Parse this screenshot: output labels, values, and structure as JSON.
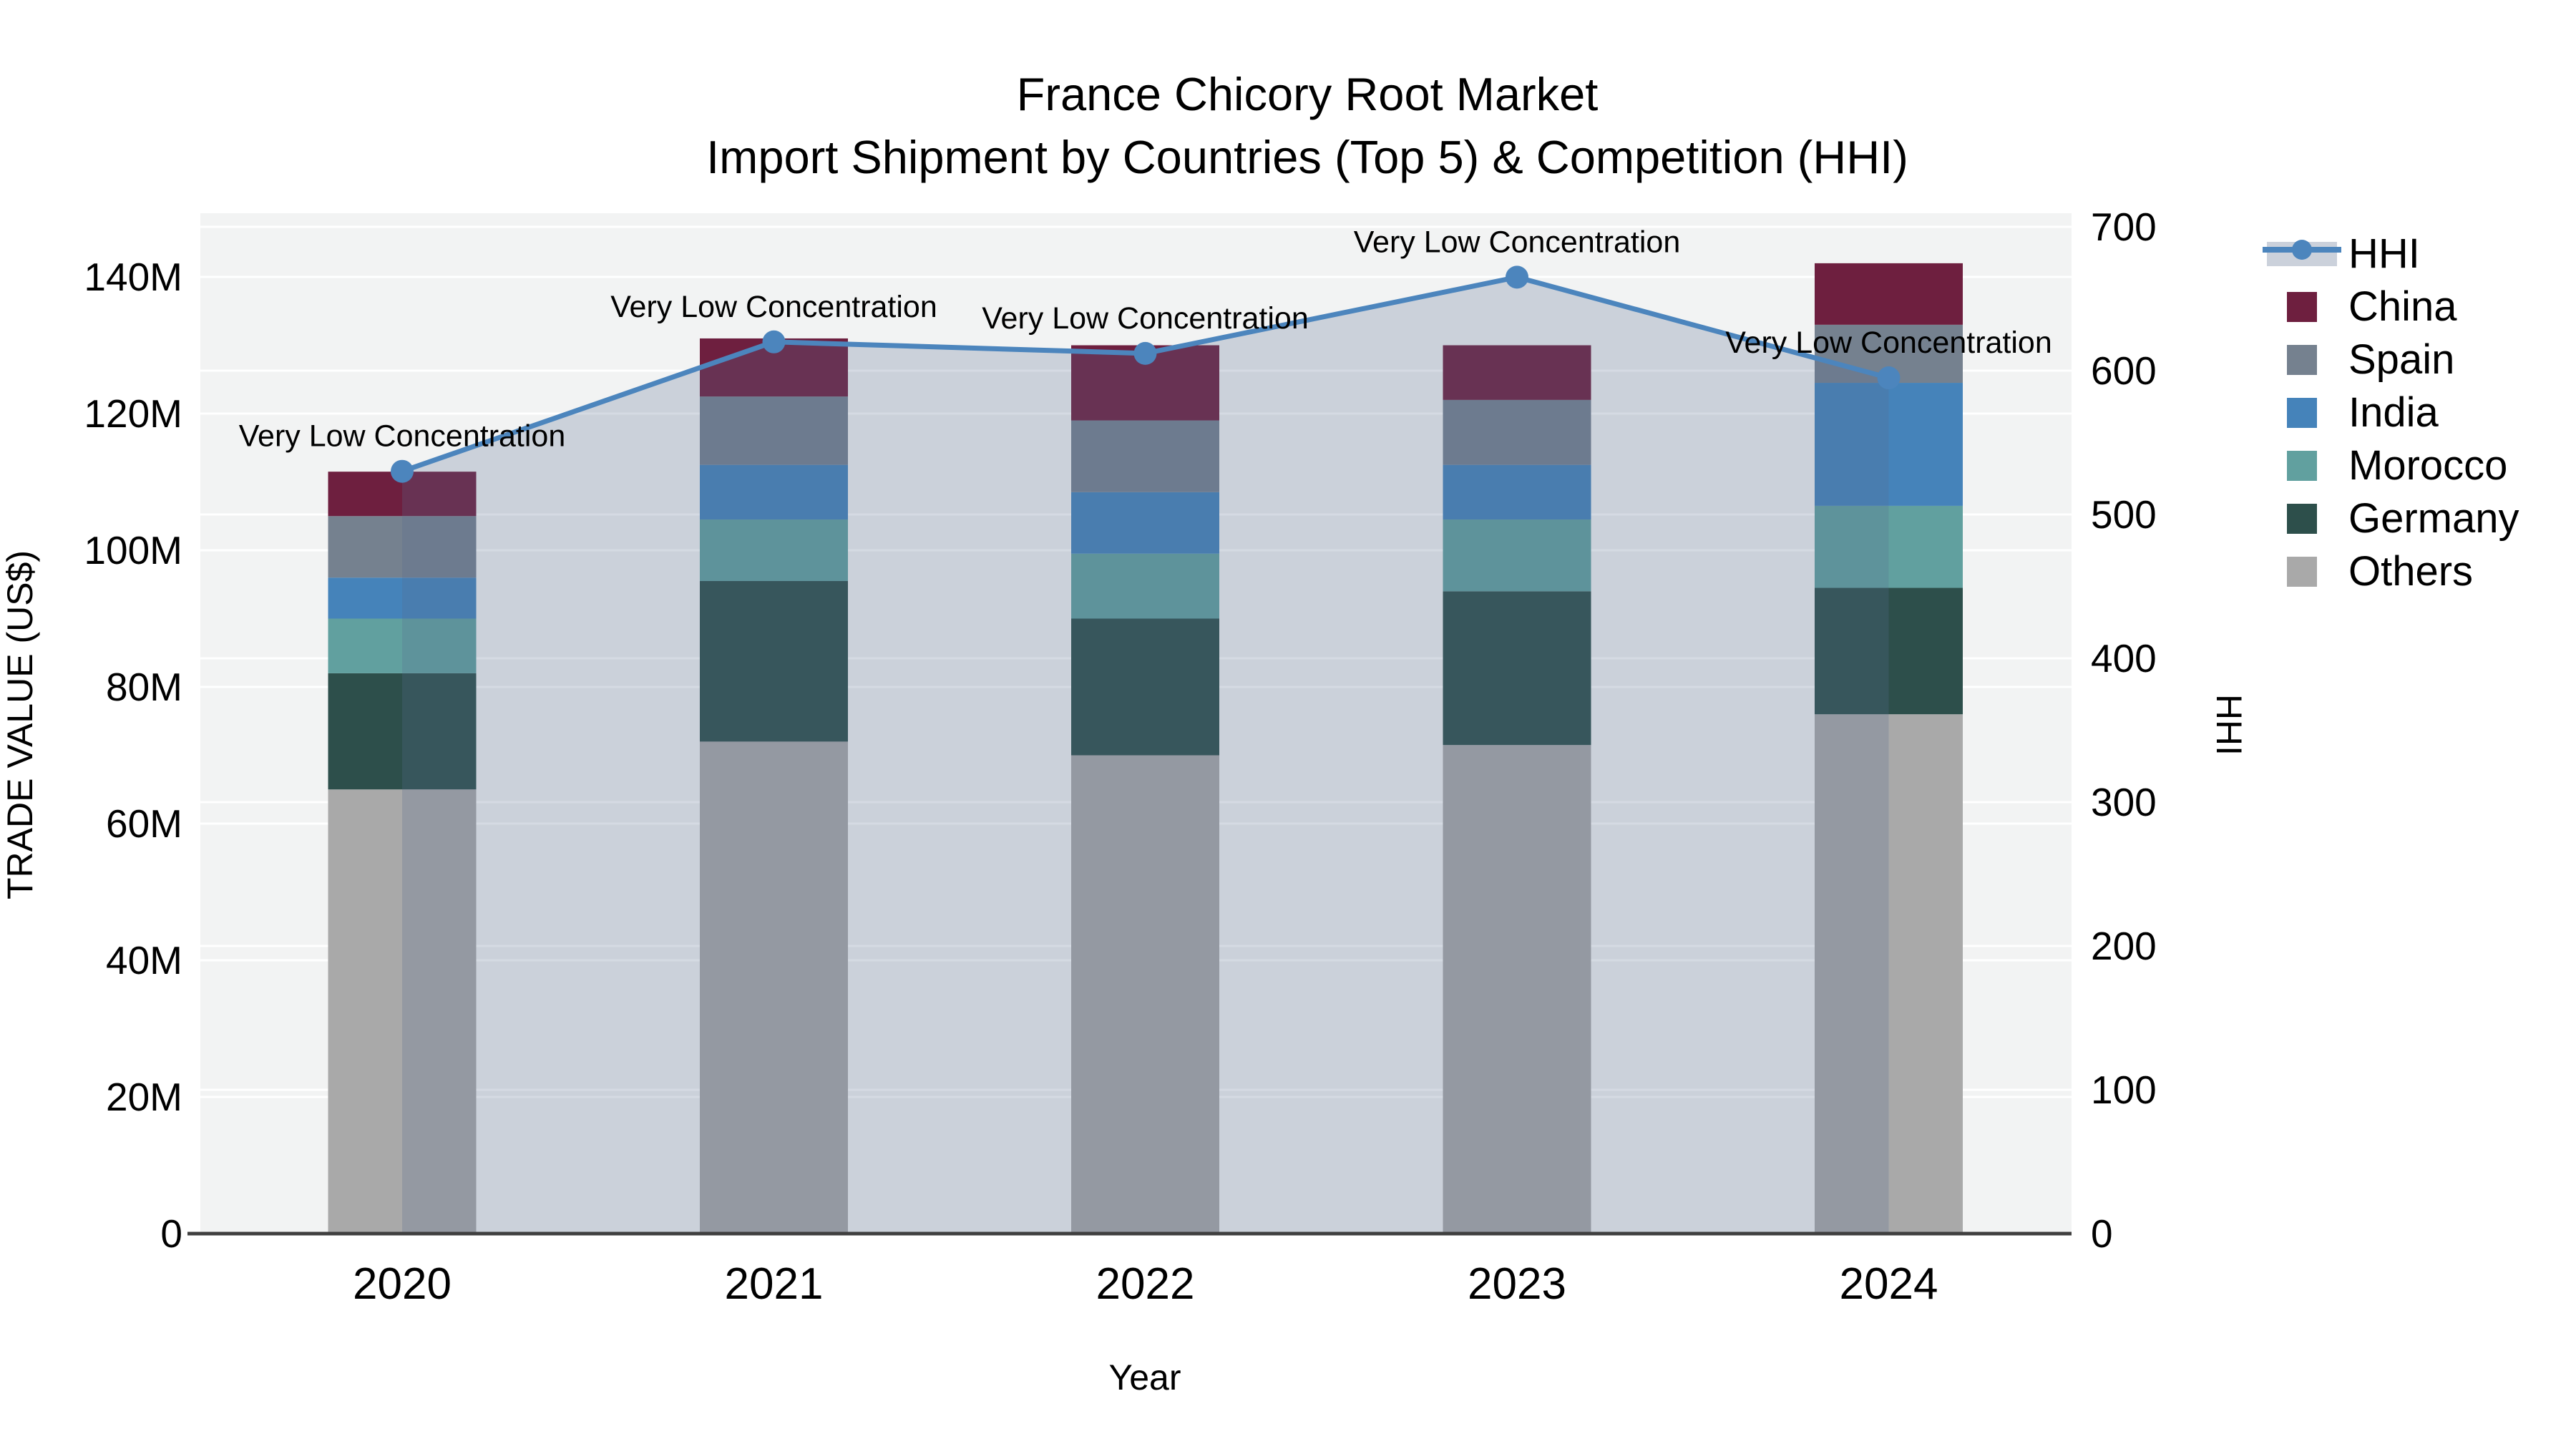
{
  "title": {
    "line1": "France Chicory Root Market",
    "line2": "Import Shipment by Countries (Top 5) & Competition (HHI)"
  },
  "axes": {
    "x_title": "Year",
    "y_left_title": "TRADE VALUE (US$)",
    "y_right_title": "HHI",
    "y_left_ticks": [
      "0",
      "20M",
      "40M",
      "60M",
      "80M",
      "100M",
      "120M",
      "140M"
    ],
    "y_left_tick_values": [
      0,
      20,
      40,
      60,
      80,
      100,
      120,
      140
    ],
    "y_right_ticks": [
      "0",
      "100",
      "200",
      "300",
      "400",
      "500",
      "600",
      "700"
    ],
    "y_right_tick_values": [
      0,
      100,
      200,
      300,
      400,
      500,
      600,
      700
    ]
  },
  "legend": {
    "items": [
      {
        "label": "HHI",
        "type": "line",
        "color": "#4c85bd",
        "band_color": "#cbd1db"
      },
      {
        "label": "China",
        "type": "swatch",
        "color": "#6e1f3f"
      },
      {
        "label": "Spain",
        "type": "swatch",
        "color": "#75818f"
      },
      {
        "label": "India",
        "type": "swatch",
        "color": "#4583ba"
      },
      {
        "label": "Morocco",
        "type": "swatch",
        "color": "#61a09f"
      },
      {
        "label": "Germany",
        "type": "swatch",
        "color": "#2d4f4b"
      },
      {
        "label": "Others",
        "type": "swatch",
        "color": "#a9a9a9"
      }
    ]
  },
  "chart_data": {
    "type": "combo: stacked bar (left axis) + line with markers and area fill (right axis)",
    "categories": [
      "2020",
      "2021",
      "2022",
      "2023",
      "2024"
    ],
    "bar_value_unit": "million US$ (trade value)",
    "series": [
      {
        "name": "China",
        "color": "#6e1f3f",
        "values": [
          6.5,
          8.5,
          11,
          8,
          9
        ]
      },
      {
        "name": "Spain",
        "color": "#75818f",
        "values": [
          9,
          10,
          10.5,
          9.5,
          8.5
        ]
      },
      {
        "name": "India",
        "color": "#4583ba",
        "values": [
          6,
          8,
          9,
          8,
          18
        ]
      },
      {
        "name": "Morocco",
        "color": "#61a09f",
        "values": [
          8,
          9,
          9.5,
          10.5,
          12
        ]
      },
      {
        "name": "Germany",
        "color": "#2d4f4b",
        "values": [
          17,
          23.5,
          20,
          22.5,
          18.5
        ]
      },
      {
        "name": "Others",
        "color": "#a9a9a9",
        "values": [
          65,
          72,
          70,
          71.5,
          76
        ]
      }
    ],
    "stack_order_bottom_to_top": [
      "Others",
      "Germany",
      "Morocco",
      "India",
      "Spain",
      "China"
    ],
    "stack_totals_musd": [
      111.5,
      131,
      130,
      130,
      142
    ],
    "line_series": {
      "name": "HHI",
      "axis": "right",
      "color": "#4c85bd",
      "fill_color": "rgba(86,106,142,0.25)",
      "values": [
        530,
        620,
        612,
        665,
        595
      ]
    },
    "annotations": [
      {
        "text": "Very Low Concentration"
      },
      {
        "text": "Very Low Concentration"
      },
      {
        "text": "Very Low Concentration"
      },
      {
        "text": "Very Low Concentration"
      },
      {
        "text": "Very Low Concentration"
      }
    ],
    "xlabel": "Year",
    "ylabel_left": "TRADE VALUE (US$)",
    "ylabel_right": "HHI",
    "y_left_range_musd": [
      0,
      149.5
    ],
    "y_right_range_hhi": [
      0,
      710
    ],
    "grid": true,
    "legend_position": "right",
    "plot_background": "#f2f3f3"
  }
}
